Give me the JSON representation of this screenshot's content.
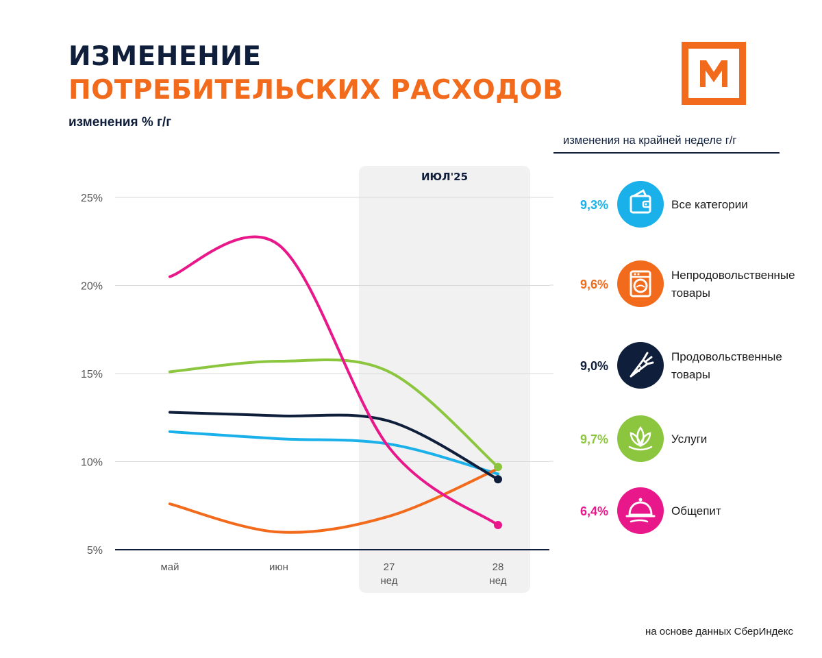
{
  "title": {
    "line1": "ИЗМЕНЕНИЕ",
    "line2": "ПОТРЕБИТЕЛЬСКИХ РАСХОДОВ",
    "subtitle": "изменения % г/г"
  },
  "colors": {
    "navy": "#0f1e3a",
    "orange": "#f26a1b",
    "blue": "#1ab0ea",
    "green": "#8cc63f",
    "pink": "#e8178a",
    "highlight": "#f1f1f1"
  },
  "logo": {
    "letter": "M"
  },
  "legend": {
    "header": "изменения на крайней неделе г/г",
    "items": [
      {
        "value": "9,3%",
        "label_lines": [
          "Все категории"
        ],
        "icon": "wallet-icon",
        "color": "#1ab0ea"
      },
      {
        "value": "9,6%",
        "label_lines": [
          "Непродовольственные",
          "товары"
        ],
        "icon": "washing-machine-icon",
        "color": "#f26a1b"
      },
      {
        "value": "9,0%",
        "label_lines": [
          "Продовольственные",
          "товары"
        ],
        "icon": "carrot-icon",
        "color": "#0f1e3a"
      },
      {
        "value": "9,7%",
        "label_lines": [
          "Услуги"
        ],
        "icon": "lotus-icon",
        "color": "#8cc63f"
      },
      {
        "value": "6,4%",
        "label_lines": [
          "Общепит"
        ],
        "icon": "cloche-icon",
        "color": "#e8178a"
      }
    ]
  },
  "chart_data": {
    "type": "line",
    "title": "ИЗМЕНЕНИЕ ПОТРЕБИТЕЛЬСКИХ РАСХОДОВ",
    "ylabel": "изменения % г/г",
    "xlabel": "",
    "categories": [
      {
        "label": "май",
        "sublabel": ""
      },
      {
        "label": "июн",
        "sublabel": ""
      },
      {
        "label": "27",
        "sublabel": "нед"
      },
      {
        "label": "28",
        "sublabel": "нед"
      }
    ],
    "highlight": {
      "label": "ИЮЛ'25",
      "from_index": 2,
      "to_index": 3
    },
    "ylim": [
      5,
      25
    ],
    "yticks": [
      5,
      10,
      15,
      20,
      25
    ],
    "ytick_labels": [
      "5%",
      "10%",
      "15%",
      "20%",
      "25%"
    ],
    "grid": true,
    "series": [
      {
        "name": "Все категории",
        "color": "#1ab0ea",
        "values": [
          11.7,
          11.3,
          11.0,
          9.3
        ],
        "endpoint_marker": false
      },
      {
        "name": "Непродовольственные товары",
        "color": "#f26a1b",
        "values": [
          7.6,
          6.0,
          6.9,
          9.6
        ],
        "endpoint_marker": false
      },
      {
        "name": "Продовольственные товары",
        "color": "#0f1e3a",
        "values": [
          12.8,
          12.6,
          12.3,
          9.0
        ],
        "endpoint_marker": true
      },
      {
        "name": "Услуги",
        "color": "#8cc63f",
        "values": [
          15.1,
          15.7,
          15.1,
          9.7
        ],
        "endpoint_marker": true
      },
      {
        "name": "Общепит",
        "color": "#e8178a",
        "values": [
          20.5,
          22.3,
          10.8,
          6.4
        ],
        "endpoint_marker": true
      }
    ]
  },
  "footnote": "на основе данных СберИндекс"
}
